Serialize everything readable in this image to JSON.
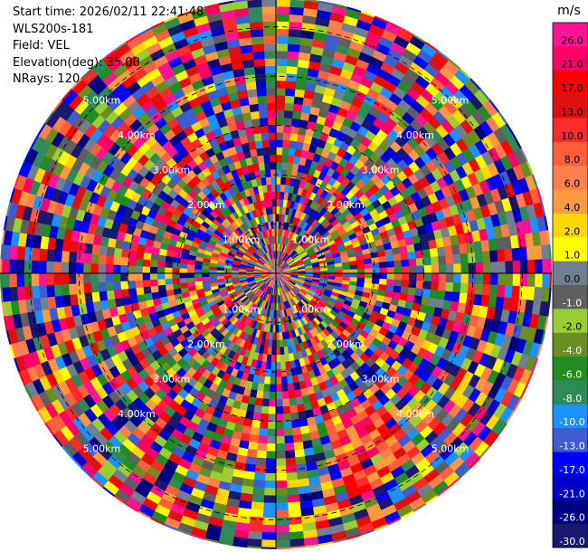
{
  "header": {
    "start_time": "Start time: 2026/02/11 22:41:48",
    "instrument": "WLS200s-181",
    "field": "Field: VEL",
    "elevation": "Elevation(deg): 35.00",
    "nrays": "NRays: 120"
  },
  "chart_data": {
    "type": "heatmap",
    "plot_kind": "PPI polar scan",
    "field": "VEL",
    "elevation_deg": 35.0,
    "n_rays": 120,
    "range_rings_km": [
      1.0,
      2.0,
      3.0,
      4.0,
      5.0
    ],
    "range_ring_labels": [
      "1.00km",
      "2.00km",
      "3.00km",
      "4.00km",
      "5.00km"
    ],
    "max_range_km": 5.6,
    "colorbar": {
      "unit": "m/s",
      "ticks": [
        "26.0",
        "21.0",
        "17.0",
        "13.0",
        "10.0",
        "8.0",
        "6.0",
        "4.0",
        "2.0",
        "1.0",
        "0.0",
        "-1.0",
        "-2.0",
        "-4.0",
        "-6.0",
        "-8.0",
        "-10.0",
        "-13.0",
        "-17.0",
        "-21.0",
        "-26.0",
        "-30.0"
      ],
      "colors": [
        "#ff1493",
        "#ff0066",
        "#ff0000",
        "#e01010",
        "#ff2a2a",
        "#ff5f3a",
        "#ff7f50",
        "#ff9a40",
        "#ffd700",
        "#ffff00",
        "#708090",
        "#5f5f5f",
        "#9acd32",
        "#6b8e23",
        "#228b22",
        "#2e8b57",
        "#1e90ff",
        "#3c5ccf",
        "#0000ff",
        "#0000cd",
        "#000080",
        "#191970"
      ]
    }
  }
}
